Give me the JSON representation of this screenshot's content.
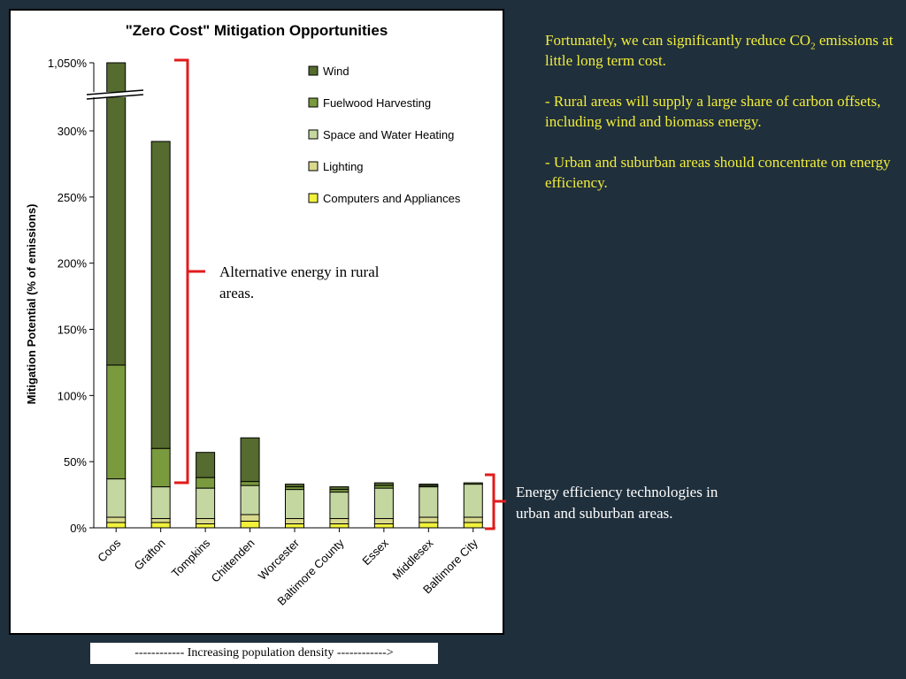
{
  "chart_data": {
    "type": "bar",
    "stacked": true,
    "title": "\"Zero Cost\" Mitigation Opportunities",
    "ylabel": "Mitigation Potential (% of emissions)",
    "xlabel": "",
    "ylim": [
      0,
      300
    ],
    "axis_break": true,
    "break_top_value": 1050,
    "yticks": [
      0,
      50,
      100,
      150,
      200,
      250,
      300
    ],
    "ytick_labels": [
      "0%",
      "50%",
      "100%",
      "150%",
      "200%",
      "250%",
      "300%"
    ],
    "top_tick_label": "1,050%",
    "categories": [
      "Coos",
      "Grafton",
      "Tompkins",
      "Chittenden",
      "Worcester",
      "Baltimore County",
      "Essex",
      "Middlesex",
      "Baltimore City"
    ],
    "series": [
      {
        "name": "Computers and Appliances",
        "color": "#f2f23c",
        "values": [
          4,
          4,
          3,
          5,
          3,
          3,
          3,
          4,
          4
        ]
      },
      {
        "name": "Lighting",
        "color": "#d9d98c",
        "values": [
          4,
          3,
          4,
          5,
          4,
          4,
          4,
          4,
          4
        ]
      },
      {
        "name": "Space and Water Heating",
        "color": "#c5d7a0",
        "values": [
          29,
          24,
          23,
          22,
          22,
          20,
          23,
          23,
          25
        ]
      },
      {
        "name": "Fuelwood Harvesting",
        "color": "#7a9a3e",
        "values": [
          86,
          29,
          8,
          3,
          2,
          2,
          2,
          1,
          1
        ]
      },
      {
        "name": "Wind",
        "color": "#556b2f",
        "values": [
          927,
          232,
          19,
          33,
          2,
          2,
          2,
          1,
          0
        ]
      }
    ],
    "legend_position": "top-right",
    "grid": false
  },
  "annotations": {
    "rural": "Alternative energy in rural areas.",
    "efficiency": "Energy efficiency technologies in urban and suburban areas.",
    "density": "------------ Increasing population density ------------>"
  },
  "side_note": {
    "p1_before": "Fortunately, we can significantly reduce CO",
    "p1_sub": "2",
    "p1_after": " emissions at little long term cost.",
    "p2": "- Rural areas will supply a large share of carbon offsets, including wind and biomass energy.",
    "p3": "- Urban and suburban areas should concentrate on energy efficiency."
  },
  "colors": {
    "background": "#1f2f3c",
    "note_text": "#f2ee3a",
    "bracket": "#e21b1b"
  }
}
